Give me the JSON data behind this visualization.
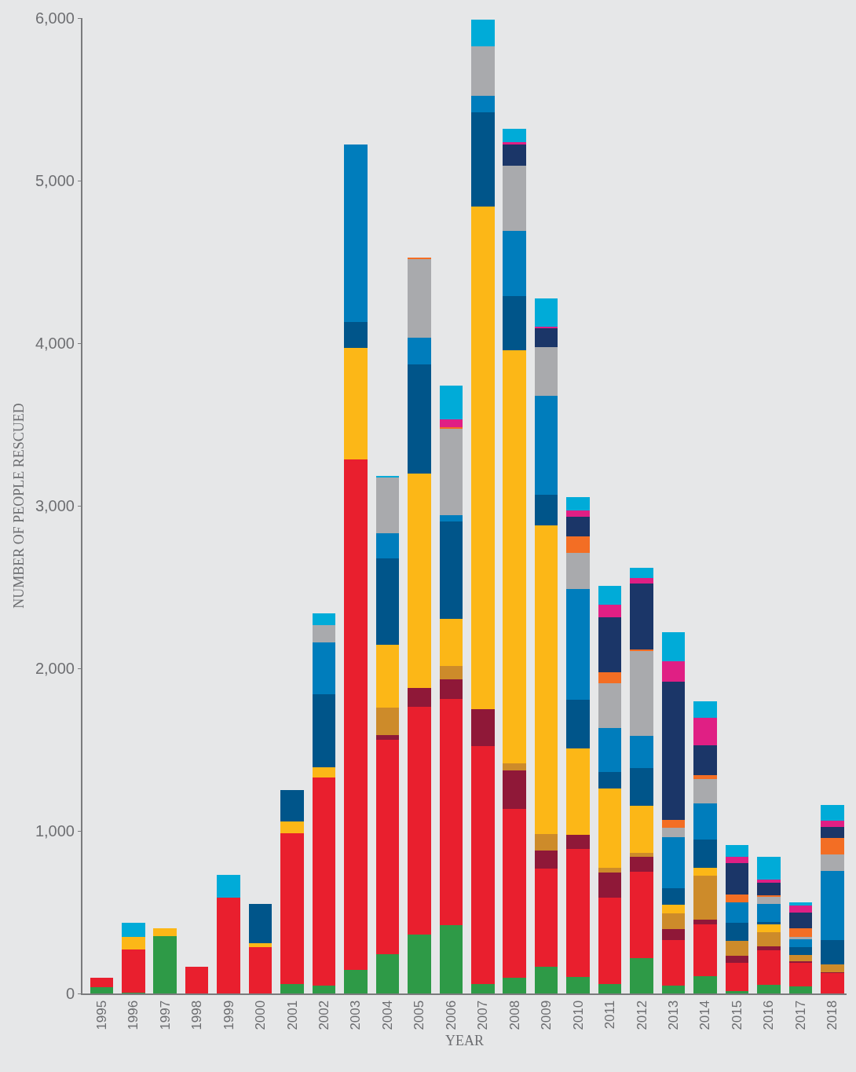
{
  "chart_data": {
    "type": "bar",
    "stacked": true,
    "xlabel": "YEAR",
    "ylabel": "NUMBER OF PEOPLE RESCUED",
    "categories": [
      "1995",
      "1996",
      "1997",
      "1998",
      "1999",
      "2000",
      "2001",
      "2002",
      "2003",
      "2004",
      "2005",
      "2006",
      "2007",
      "2008",
      "2009",
      "2010",
      "2011",
      "2012",
      "2013",
      "2014",
      "2015",
      "2016",
      "2017",
      "2018"
    ],
    "series": [
      {
        "color": "#2e9a47",
        "values": [
          40,
          5,
          355,
          0,
          0,
          0,
          60,
          50,
          145,
          240,
          360,
          420,
          60,
          95,
          165,
          100,
          60,
          215,
          50,
          105,
          15,
          55,
          45,
          0
        ]
      },
      {
        "color": "#e91f2e",
        "values": [
          55,
          265,
          0,
          165,
          590,
          285,
          925,
          1280,
          3140,
          1320,
          1405,
          1390,
          1460,
          1040,
          605,
          790,
          530,
          535,
          280,
          320,
          175,
          210,
          145,
          125
        ]
      },
      {
        "color": "#8f1838",
        "values": [
          0,
          0,
          0,
          0,
          0,
          0,
          0,
          0,
          0,
          30,
          115,
          120,
          230,
          235,
          110,
          85,
          155,
          90,
          65,
          30,
          40,
          25,
          10,
          5
        ]
      },
      {
        "color": "#cd8b2a",
        "values": [
          0,
          0,
          0,
          0,
          0,
          0,
          0,
          0,
          0,
          170,
          0,
          85,
          0,
          45,
          100,
          0,
          30,
          25,
          100,
          270,
          95,
          85,
          35,
          50
        ]
      },
      {
        "color": "#fcb717",
        "values": [
          0,
          80,
          45,
          0,
          0,
          25,
          75,
          60,
          685,
          385,
          1320,
          290,
          3090,
          2540,
          1900,
          530,
          485,
          290,
          50,
          50,
          0,
          50,
          0,
          0
        ]
      },
      {
        "color": "#00558a",
        "values": [
          0,
          0,
          0,
          0,
          0,
          240,
          190,
          450,
          160,
          530,
          670,
          600,
          580,
          335,
          190,
          300,
          100,
          230,
          100,
          170,
          110,
          15,
          50,
          150
        ]
      },
      {
        "color": "#007dbc",
        "values": [
          0,
          0,
          0,
          0,
          0,
          0,
          0,
          320,
          1090,
          155,
          165,
          35,
          100,
          400,
          605,
          685,
          275,
          200,
          315,
          225,
          125,
          110,
          50,
          425
        ]
      },
      {
        "color": "#a9aaad",
        "values": [
          0,
          0,
          0,
          0,
          0,
          0,
          0,
          105,
          0,
          345,
          480,
          535,
          305,
          400,
          300,
          220,
          275,
          520,
          60,
          150,
          0,
          45,
          15,
          100
        ]
      },
      {
        "color": "#f36e24",
        "values": [
          0,
          0,
          0,
          0,
          0,
          0,
          0,
          0,
          0,
          0,
          10,
          10,
          0,
          0,
          0,
          100,
          65,
          10,
          50,
          25,
          50,
          10,
          50,
          100
        ]
      },
      {
        "color": "#1b3668",
        "values": [
          0,
          0,
          0,
          0,
          0,
          0,
          0,
          0,
          0,
          0,
          0,
          0,
          0,
          130,
          115,
          120,
          340,
          405,
          850,
          180,
          190,
          75,
          100,
          70
        ]
      },
      {
        "color": "#e01f84",
        "values": [
          0,
          0,
          0,
          0,
          0,
          0,
          0,
          0,
          0,
          0,
          0,
          45,
          0,
          15,
          10,
          40,
          75,
          35,
          125,
          170,
          40,
          20,
          40,
          40
        ]
      },
      {
        "color": "#00abd8",
        "values": [
          0,
          85,
          0,
          0,
          140,
          0,
          0,
          75,
          0,
          10,
          0,
          210,
          165,
          85,
          175,
          85,
          115,
          65,
          175,
          100,
          75,
          140,
          20,
          95
        ]
      }
    ],
    "ylim": [
      0,
      6000
    ],
    "yticks": [
      0,
      {
        "value": 1000,
        "label": "1,000"
      },
      {
        "value": 2000,
        "label": "2,000"
      },
      {
        "value": 3000,
        "label": "3,000"
      },
      {
        "value": 4000,
        "label": "4,000"
      },
      {
        "value": 5000,
        "label": "5,000"
      },
      {
        "value": 6000,
        "label": "6,000"
      }
    ]
  }
}
